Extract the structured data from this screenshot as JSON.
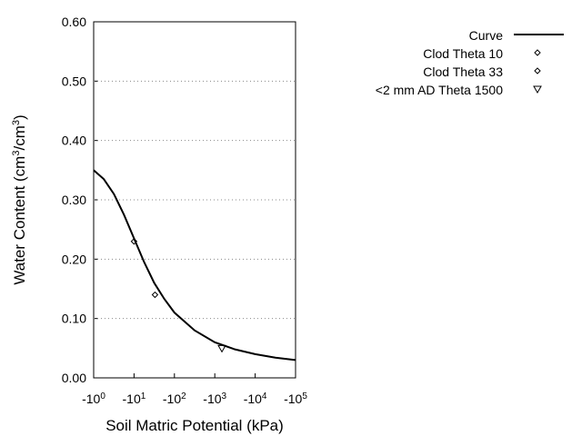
{
  "chart_data": {
    "type": "line",
    "x_label": "Soil Matric Potential (kPa)",
    "y_label": [
      {
        "text": "Water Content (cm"
      },
      {
        "text": "3",
        "sup": true
      },
      {
        "text": "/cm"
      },
      {
        "text": "3",
        "sup": true
      },
      {
        "text": ")"
      }
    ],
    "xscale": "log",
    "xlim": [
      -1,
      -100000
    ],
    "xticks": [
      {
        "value": -1,
        "label": "-10",
        "exponent": "0"
      },
      {
        "value": -10,
        "label": "-10",
        "exponent": "1"
      },
      {
        "value": -100,
        "label": "-10",
        "exponent": "2"
      },
      {
        "value": -1000,
        "label": "-10",
        "exponent": "3"
      },
      {
        "value": -10000,
        "label": "-10",
        "exponent": "4"
      },
      {
        "value": -100000,
        "label": "-10",
        "exponent": "5"
      }
    ],
    "ylim": [
      0,
      0.6
    ],
    "yticks": [
      {
        "value": 0,
        "label": "0.00"
      },
      {
        "value": 0.1,
        "label": "0.10"
      },
      {
        "value": 0.2,
        "label": "0.20"
      },
      {
        "value": 0.3,
        "label": "0.30"
      },
      {
        "value": 0.4,
        "label": "0.40"
      },
      {
        "value": 0.5,
        "label": "0.50"
      },
      {
        "value": 0.6,
        "label": "0.60"
      }
    ],
    "grid": true,
    "legend": "top-right",
    "series": [
      {
        "name": "Curve",
        "color": "#000000",
        "marker": "line",
        "x": [
          -1,
          -1.78,
          -3.16,
          -5.62,
          -10,
          -17.8,
          -31.6,
          -56.2,
          -100,
          -316,
          -1000,
          -3162,
          -10000,
          -31623,
          -100000
        ],
        "values": [
          0.35,
          0.335,
          0.31,
          0.275,
          0.235,
          0.195,
          0.16,
          0.133,
          0.11,
          0.08,
          0.06,
          0.048,
          0.04,
          0.034,
          0.03
        ]
      },
      {
        "name": "Clod Theta 10",
        "color": "#000000",
        "marker": "diamond",
        "x": [
          -10
        ],
        "values": [
          0.23
        ]
      },
      {
        "name": "Clod Theta 33",
        "color": "#000000",
        "marker": "diamond",
        "x": [
          -33
        ],
        "values": [
          0.14
        ]
      },
      {
        "name": "<2 mm AD Theta 1500",
        "color": "#000000",
        "marker": "triangle-down",
        "x": [
          -1500
        ],
        "values": [
          0.05
        ]
      }
    ]
  }
}
